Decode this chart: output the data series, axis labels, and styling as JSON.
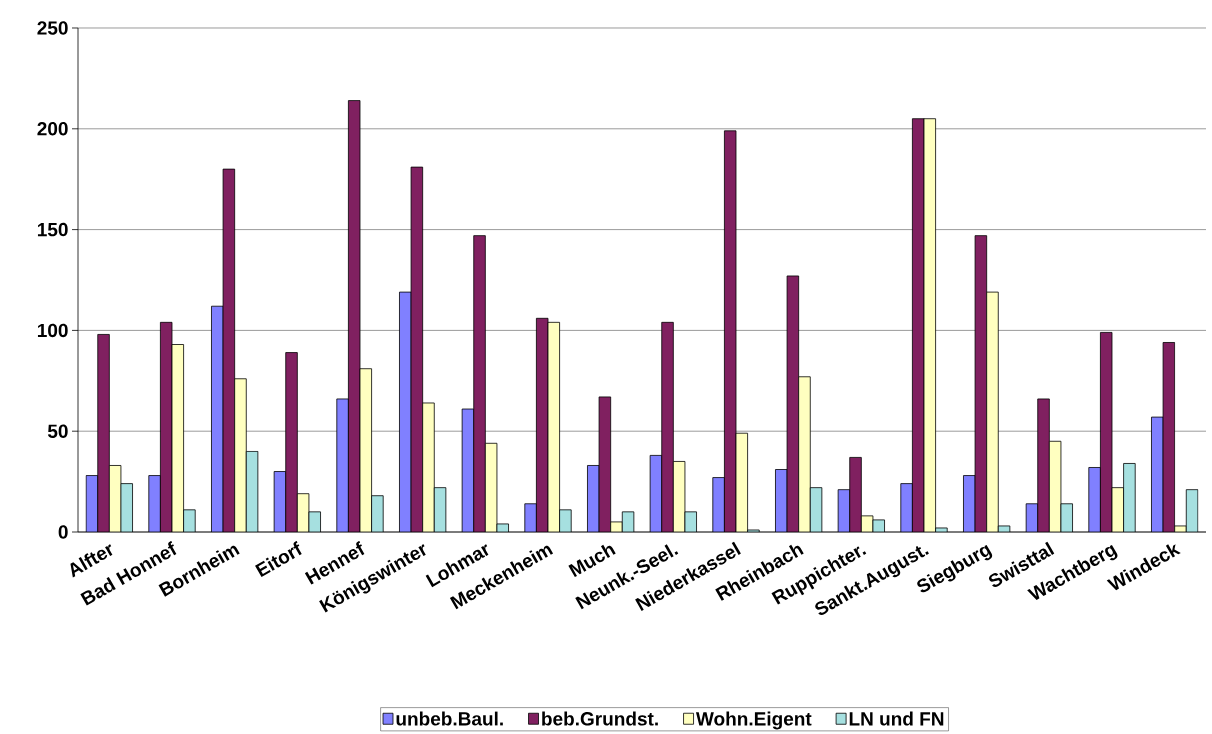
{
  "chart_data": {
    "type": "bar",
    "categories": [
      "Alfter",
      "Bad Honnef",
      "Bornheim",
      "Eitorf",
      "Hennef",
      "Königswinter",
      "Lohmar",
      "Meckenheim",
      "Much",
      "Neunk.-Seel.",
      "Niederkassel",
      "Rheinbach",
      "Ruppichter.",
      "Sankt.August.",
      "Siegburg",
      "Swisttal",
      "Wachtberg",
      "Windeck"
    ],
    "series": [
      {
        "name": "unbeb.Baul.",
        "color": "#8080ff",
        "values": [
          28,
          28,
          112,
          30,
          66,
          119,
          61,
          14,
          33,
          38,
          27,
          31,
          21,
          24,
          28,
          14,
          32,
          57
        ]
      },
      {
        "name": "beb.Grundst.",
        "color": "#802060",
        "values": [
          98,
          104,
          180,
          89,
          214,
          181,
          147,
          106,
          67,
          104,
          199,
          127,
          37,
          205,
          147,
          66,
          99,
          94
        ]
      },
      {
        "name": "Wohn.Eigent",
        "color": "#ffffc0",
        "values": [
          33,
          93,
          76,
          19,
          81,
          64,
          44,
          104,
          5,
          35,
          49,
          77,
          8,
          205,
          119,
          45,
          22,
          3
        ]
      },
      {
        "name": "LN und FN",
        "color": "#a6e0e0",
        "values": [
          24,
          11,
          40,
          10,
          18,
          22,
          4,
          11,
          10,
          10,
          1,
          22,
          6,
          2,
          3,
          14,
          34,
          21
        ]
      }
    ],
    "ylim": [
      0,
      250
    ],
    "yticks": [
      0,
      50,
      100,
      150,
      200,
      250
    ],
    "grid": "y",
    "legend": "bottom"
  }
}
